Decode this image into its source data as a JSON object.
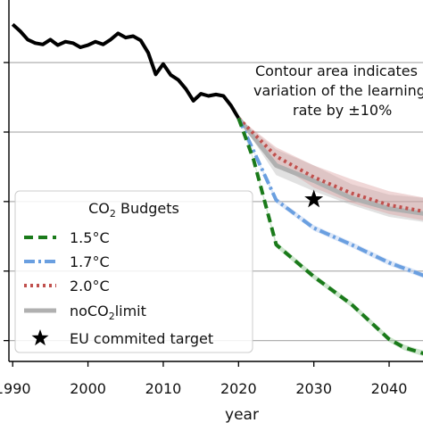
{
  "chart_data": {
    "type": "line",
    "xlabel": "year",
    "ylabel": "",
    "xlim": [
      1989.5,
      2044.5
    ],
    "ylim": [
      -0.3,
      4.9
    ],
    "grid": {
      "y": true,
      "x": false
    },
    "x_ticks": [
      1990,
      2000,
      2010,
      2020,
      2030,
      2040
    ],
    "x_tick_labels": [
      "1990",
      "2000",
      "2010",
      "2020",
      "2030",
      "2040"
    ],
    "y_ticks": [
      0,
      1,
      2,
      3,
      4
    ],
    "annotation": {
      "lines": [
        "Contour area indicates",
        "variation of the learning",
        "rate by ±10%"
      ]
    },
    "legend": {
      "title_prefix": "CO",
      "title_sub": "2",
      "title_suffix": " Budgets",
      "placement": "lower-left",
      "entries": [
        {
          "label": "1.5°C",
          "series": "1.5C",
          "style": "dashed",
          "color": "#1a7a1a"
        },
        {
          "label": "1.7°C",
          "series": "1.7C",
          "style": "dashdot",
          "color": "#6a9fe0"
        },
        {
          "label": "2.0°C",
          "series": "2.0C",
          "style": "dotted",
          "color": "#c0504d"
        },
        {
          "label_prefix": "noCO",
          "label_sub": "2",
          "label_suffix": "limit",
          "series": "noCO2limit",
          "style": "solid",
          "color": "#b0b0b0"
        },
        {
          "label": "EU commited target",
          "series": "EU",
          "style": "star",
          "color": "#000000"
        }
      ]
    },
    "series": [
      {
        "name": "historical",
        "color": "#000000",
        "x": [
          1990,
          1991,
          1992,
          1993,
          1994,
          1995,
          1996,
          1997,
          1998,
          1999,
          2000,
          2001,
          2002,
          2003,
          2004,
          2005,
          2006,
          2007,
          2008,
          2009,
          2010,
          2011,
          2012,
          2013,
          2014,
          2015,
          2016,
          2017,
          2018,
          2019,
          2020
        ],
        "y": [
          4.55,
          4.45,
          4.33,
          4.28,
          4.26,
          4.33,
          4.25,
          4.3,
          4.28,
          4.22,
          4.25,
          4.3,
          4.26,
          4.33,
          4.42,
          4.36,
          4.38,
          4.32,
          4.14,
          3.83,
          3.98,
          3.82,
          3.75,
          3.62,
          3.45,
          3.55,
          3.52,
          3.54,
          3.52,
          3.38,
          3.2
        ]
      },
      {
        "name": "noCO2limit",
        "color": "#b0b0b0",
        "x": [
          2020,
          2025,
          2030,
          2035,
          2040,
          2045
        ],
        "y": [
          3.2,
          2.52,
          2.3,
          2.05,
          1.9,
          1.82
        ],
        "band_upper": [
          3.2,
          2.75,
          2.52,
          2.25,
          2.1,
          2.05
        ],
        "band_lower": [
          3.2,
          2.38,
          2.15,
          1.95,
          1.78,
          1.7
        ]
      },
      {
        "name": "2.0C",
        "color": "#c0504d",
        "x": [
          2020,
          2025,
          2030,
          2035,
          2040,
          2045
        ],
        "y": [
          3.2,
          2.65,
          2.35,
          2.12,
          1.95,
          1.85
        ],
        "band_upper": [
          3.2,
          2.78,
          2.52,
          2.32,
          2.15,
          2.05
        ],
        "band_lower": [
          3.2,
          2.55,
          2.2,
          1.98,
          1.82,
          1.72
        ]
      },
      {
        "name": "1.7C",
        "color": "#6a9fe0",
        "x": [
          2020,
          2025,
          2030,
          2035,
          2040,
          2045
        ],
        "y": [
          3.2,
          2.02,
          1.62,
          1.38,
          1.12,
          0.92
        ],
        "band_upper": [
          3.2,
          2.06,
          1.66,
          1.42,
          1.16,
          0.96
        ],
        "band_lower": [
          3.2,
          1.98,
          1.58,
          1.34,
          1.08,
          0.88
        ]
      },
      {
        "name": "1.5C",
        "color": "#1a7a1a",
        "x": [
          2020,
          2022,
          2025,
          2030,
          2035,
          2040,
          2042,
          2045
        ],
        "y": [
          3.2,
          2.6,
          1.38,
          0.92,
          0.52,
          0.02,
          -0.1,
          -0.2
        ],
        "band_upper": [
          3.2,
          2.62,
          1.42,
          0.96,
          0.56,
          0.06,
          -0.06,
          -0.16
        ],
        "band_lower": [
          3.2,
          2.58,
          1.34,
          0.88,
          0.48,
          -0.02,
          -0.14,
          -0.24
        ]
      }
    ],
    "target": {
      "name": "EU commited target",
      "x": 2030,
      "y": 2.03
    }
  }
}
